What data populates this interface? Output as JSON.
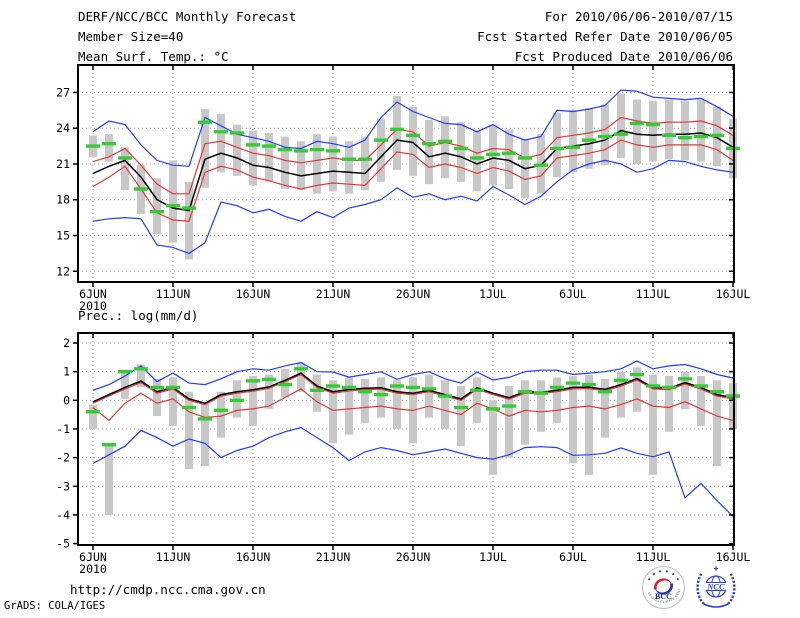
{
  "header": {
    "title": "DERF/NCC/BCC Monthly Forecast",
    "member_size": "Member Size=40",
    "temp_label": "Mean Surf. Temp.: °C",
    "for_range": "For 2010/06/06-2010/07/15",
    "fcst_started": "Fcst Started Refer Date 2010/06/05",
    "fcst_produced": "Fcst Produced Date 2010/06/06"
  },
  "between": {
    "prec_label": "Prec.: log(mm/d)"
  },
  "footer": {
    "url": "http://cmdp.ncc.cma.gov.cn",
    "grads_credit": "GrADS: COLA/IGES",
    "logos": [
      {
        "label": "BCC",
        "ring_text": "BEIJING CLIMATE CENTER"
      },
      {
        "label": "NCC"
      }
    ]
  },
  "colors": {
    "max_min": "#1e3cff",
    "std": "#e63535",
    "mean": "#000000",
    "observation": "#33cc33",
    "spread_bar": "#c8c8c8",
    "grid": "#999999"
  },
  "chart_data": [
    {
      "type": "line",
      "title": "Mean Surf. Temp.: °C",
      "x_tick_labels": [
        "6JUN",
        "11JUN",
        "16JUN",
        "21JUN",
        "26JUN",
        "1JUL",
        "6JUL",
        "11JUL",
        "16JUL"
      ],
      "x_tick_days": [
        0,
        5,
        10,
        15,
        20,
        25,
        30,
        35,
        40
      ],
      "x_year_label": "2010",
      "ylim": [
        11.1,
        29.3
      ],
      "yticks": [
        27,
        24,
        21,
        18,
        15,
        12
      ],
      "grid": true,
      "legend": "none",
      "series": [
        {
          "name": "ensemble-spread",
          "type": "bar",
          "color": "#c8c8c8",
          "lo": [
            21.6,
            21.2,
            18.8,
            16.8,
            15.1,
            14.4,
            13.0,
            19.0,
            20.3,
            20.0,
            19.2,
            19.5,
            18.9,
            18.8,
            18.5,
            18.7,
            18.5,
            18.8,
            19.5,
            20.5,
            20.0,
            19.3,
            19.8,
            19.5,
            18.7,
            19.2,
            18.9,
            18.1,
            18.5,
            19.9,
            20.3,
            20.6,
            20.9,
            21.5,
            21.0,
            21.2,
            21.4,
            21.3,
            21.2,
            20.8,
            19.8
          ],
          "hi": [
            23.4,
            23.5,
            22.4,
            20.9,
            19.8,
            21.3,
            19.5,
            25.6,
            25.2,
            24.3,
            23.8,
            23.6,
            23.3,
            22.9,
            23.5,
            23.3,
            22.9,
            23.3,
            24.8,
            26.7,
            25.8,
            24.7,
            25.0,
            24.5,
            23.8,
            24.3,
            23.9,
            23.1,
            23.5,
            25.3,
            25.5,
            25.7,
            26.0,
            26.9,
            26.4,
            26.3,
            26.4,
            26.3,
            26.4,
            25.8,
            24.8
          ]
        },
        {
          "name": "maximum",
          "type": "line",
          "color": "#1e3cff",
          "values": [
            23.7,
            24.6,
            24.3,
            22.6,
            21.3,
            20.9,
            20.8,
            24.9,
            24.2,
            23.5,
            23.2,
            22.9,
            22.4,
            22.3,
            22.9,
            22.7,
            22.4,
            23.0,
            24.9,
            26.2,
            25.4,
            24.9,
            24.4,
            24.3,
            23.7,
            24.3,
            23.5,
            23.0,
            23.3,
            25.5,
            25.4,
            25.6,
            25.9,
            27.2,
            27.1,
            26.6,
            26.5,
            26.4,
            26.5,
            25.8,
            25.0
          ]
        },
        {
          "name": "mean-plus-std",
          "type": "line",
          "color": "#e63535",
          "values": [
            21.2,
            21.6,
            22.3,
            20.9,
            19.3,
            18.5,
            18.5,
            22.7,
            22.9,
            22.4,
            21.9,
            21.7,
            21.3,
            21.1,
            21.3,
            21.5,
            21.3,
            21.3,
            22.6,
            23.9,
            23.7,
            22.5,
            22.8,
            22.5,
            21.9,
            22.3,
            22.2,
            21.5,
            21.8,
            23.2,
            23.4,
            23.6,
            23.9,
            24.9,
            24.6,
            24.4,
            24.5,
            24.5,
            24.6,
            24.2,
            23.4
          ]
        },
        {
          "name": "ensemble-mean",
          "type": "line",
          "color": "#000000",
          "values": [
            20.2,
            20.8,
            21.3,
            19.9,
            18.0,
            17.3,
            17.1,
            21.4,
            21.9,
            21.5,
            20.9,
            20.7,
            20.3,
            20.0,
            20.2,
            20.4,
            20.3,
            20.2,
            21.6,
            23.0,
            22.8,
            21.6,
            21.9,
            21.6,
            21.0,
            21.5,
            21.3,
            20.6,
            20.9,
            22.3,
            22.5,
            22.7,
            23.0,
            23.8,
            23.5,
            23.4,
            23.5,
            23.5,
            23.6,
            23.2,
            22.4
          ]
        },
        {
          "name": "mean-minus-std",
          "type": "line",
          "color": "#e63535",
          "values": [
            19.1,
            19.9,
            20.8,
            18.9,
            16.9,
            16.3,
            16.2,
            20.3,
            20.8,
            20.5,
            19.9,
            19.6,
            19.2,
            18.9,
            19.2,
            19.4,
            19.3,
            19.2,
            20.6,
            22.0,
            21.8,
            20.7,
            21.0,
            20.7,
            20.2,
            20.7,
            20.4,
            19.7,
            20.0,
            21.5,
            21.7,
            21.9,
            22.2,
            23.0,
            22.6,
            22.4,
            22.6,
            22.6,
            22.6,
            22.2,
            21.3
          ]
        },
        {
          "name": "minimum",
          "type": "line",
          "color": "#1e3cff",
          "values": [
            16.2,
            16.4,
            16.5,
            16.4,
            14.2,
            14.0,
            13.5,
            14.4,
            17.8,
            17.5,
            16.9,
            17.2,
            16.6,
            16.2,
            17.0,
            16.5,
            17.3,
            17.6,
            18.0,
            19.0,
            18.2,
            18.5,
            18.0,
            18.3,
            17.9,
            19.1,
            18.4,
            17.6,
            18.3,
            19.5,
            20.5,
            21.0,
            21.3,
            21.0,
            20.3,
            20.6,
            21.3,
            21.2,
            20.8,
            20.5,
            20.3
          ]
        },
        {
          "name": "observation",
          "type": "dash",
          "color": "#33cc33",
          "values": [
            22.5,
            22.7,
            21.5,
            18.9,
            17.0,
            17.5,
            17.3,
            24.5,
            23.7,
            23.6,
            22.6,
            22.5,
            22.2,
            22.1,
            22.2,
            22.1,
            21.4,
            21.4,
            23.0,
            23.9,
            23.4,
            22.7,
            22.9,
            22.3,
            21.5,
            21.8,
            21.9,
            21.5,
            20.9,
            22.3,
            22.4,
            23.0,
            23.3,
            23.5,
            24.4,
            24.3,
            23.4,
            23.2,
            23.3,
            23.4,
            22.3
          ]
        }
      ]
    },
    {
      "type": "line",
      "title": "Prec.: log(mm/d)",
      "x_tick_labels": [
        "6JUN",
        "11JUN",
        "16JUN",
        "21JUN",
        "26JUN",
        "1JUL",
        "6JUL",
        "11JUL",
        "16JUL"
      ],
      "x_tick_days": [
        0,
        5,
        10,
        15,
        20,
        25,
        30,
        35,
        40
      ],
      "x_year_label": "2010",
      "ylim": [
        -5.05,
        2.35
      ],
      "yticks": [
        2,
        1,
        0,
        -1,
        -2,
        -3,
        -4,
        -5
      ],
      "grid": true,
      "legend": "none",
      "series": [
        {
          "name": "ensemble-spread",
          "type": "bar",
          "color": "#c8c8c8",
          "lo": [
            -1.0,
            -4.0,
            0.05,
            0.45,
            -0.55,
            -0.9,
            -2.4,
            -2.3,
            -1.3,
            -0.6,
            -0.9,
            -0.3,
            0.1,
            0.3,
            -0.4,
            -1.5,
            -1.2,
            -0.8,
            -0.6,
            -1.0,
            -1.5,
            -0.6,
            -1.0,
            -1.6,
            -0.8,
            -2.6,
            -2.0,
            -1.55,
            -1.1,
            -0.8,
            -2.2,
            -2.6,
            -1.3,
            -0.6,
            -0.4,
            -2.6,
            -1.1,
            -0.3,
            -0.9,
            -2.3,
            -1.0
          ],
          "hi": [
            -0.15,
            -1.5,
            1.05,
            1.25,
            0.75,
            0.8,
            0.3,
            -0.1,
            0.3,
            0.7,
            0.85,
            0.9,
            1.1,
            1.3,
            0.9,
            0.7,
            0.8,
            0.75,
            0.8,
            0.7,
            0.8,
            0.9,
            0.7,
            0.5,
            0.8,
            0.0,
            0.5,
            0.7,
            0.7,
            0.8,
            0.85,
            0.9,
            0.75,
            1.0,
            1.15,
            0.9,
            0.85,
            1.0,
            0.85,
            0.7,
            0.6
          ]
        },
        {
          "name": "maximum",
          "type": "line",
          "color": "#1e3cff",
          "values": [
            0.35,
            0.55,
            0.85,
            1.2,
            0.65,
            0.95,
            0.6,
            0.55,
            0.75,
            1.0,
            1.1,
            1.05,
            1.2,
            1.32,
            1.0,
            0.99,
            0.81,
            0.9,
            1.0,
            0.73,
            0.9,
            1.0,
            0.75,
            0.6,
            0.99,
            0.71,
            0.8,
            1.0,
            1.05,
            1.05,
            0.9,
            0.95,
            1.0,
            1.1,
            1.37,
            1.1,
            1.2,
            1.25,
            1.1,
            0.9,
            0.78
          ]
        },
        {
          "name": "mean-plus-std",
          "type": "line",
          "color": "#e63535",
          "values": [
            -0.1,
            0.15,
            0.4,
            0.62,
            0.25,
            0.4,
            0.0,
            -0.15,
            0.15,
            0.25,
            0.32,
            0.42,
            0.65,
            0.9,
            0.45,
            0.25,
            0.33,
            0.37,
            0.39,
            0.25,
            0.2,
            0.3,
            0.15,
            0.0,
            0.39,
            0.2,
            0.04,
            0.25,
            0.23,
            0.3,
            0.4,
            0.41,
            0.33,
            0.5,
            0.71,
            0.4,
            0.37,
            0.57,
            0.4,
            0.15,
            0.05
          ]
        },
        {
          "name": "ensemble-mean",
          "type": "line",
          "color": "#000000",
          "values": [
            -0.05,
            0.2,
            0.45,
            0.67,
            0.3,
            0.45,
            0.05,
            -0.1,
            0.2,
            0.3,
            0.37,
            0.47,
            0.7,
            0.95,
            0.5,
            0.3,
            0.38,
            0.42,
            0.44,
            0.3,
            0.25,
            0.35,
            0.2,
            0.05,
            0.44,
            0.25,
            0.09,
            0.3,
            0.28,
            0.35,
            0.45,
            0.46,
            0.38,
            0.55,
            0.76,
            0.45,
            0.42,
            0.62,
            0.45,
            0.2,
            0.1
          ]
        },
        {
          "name": "mean-minus-std",
          "type": "line",
          "color": "#e63535",
          "values": [
            -0.25,
            -0.7,
            -0.1,
            0.25,
            -0.1,
            0.05,
            -0.4,
            -0.6,
            -0.55,
            -0.35,
            -0.3,
            -0.2,
            0.1,
            0.4,
            -0.05,
            -0.35,
            -0.3,
            -0.25,
            -0.2,
            -0.3,
            -0.35,
            -0.2,
            -0.35,
            -0.5,
            -0.1,
            -0.3,
            -0.55,
            -0.35,
            -0.4,
            -0.35,
            -0.25,
            -0.2,
            -0.3,
            -0.15,
            0.05,
            -0.2,
            -0.25,
            -0.05,
            -0.3,
            -0.55,
            -0.7
          ]
        },
        {
          "name": "minimum",
          "type": "line",
          "color": "#1e3cff",
          "values": [
            -2.2,
            -1.9,
            -1.6,
            -1.05,
            -1.3,
            -1.6,
            -1.35,
            -1.5,
            -2.0,
            -1.75,
            -1.6,
            -1.3,
            -1.1,
            -0.95,
            -1.3,
            -1.65,
            -2.1,
            -1.8,
            -1.65,
            -1.75,
            -1.9,
            -1.8,
            -1.7,
            -1.85,
            -2.0,
            -2.05,
            -1.9,
            -1.65,
            -1.62,
            -1.65,
            -1.92,
            -1.9,
            -1.85,
            -1.66,
            -1.85,
            -1.97,
            -1.8,
            -3.4,
            -2.9,
            -3.5,
            -4.05
          ]
        },
        {
          "name": "observation",
          "type": "dash",
          "color": "#33cc33",
          "values": [
            -0.4,
            -1.55,
            1.0,
            1.1,
            0.45,
            0.45,
            -0.25,
            -0.65,
            -0.35,
            0.0,
            0.68,
            0.73,
            0.55,
            1.1,
            0.35,
            0.5,
            0.45,
            0.3,
            0.2,
            0.5,
            0.45,
            0.4,
            0.15,
            -0.25,
            0.35,
            -0.3,
            -0.2,
            0.3,
            0.25,
            0.45,
            0.6,
            0.55,
            0.3,
            0.7,
            0.9,
            0.5,
            0.45,
            0.75,
            0.5,
            0.3,
            0.15
          ]
        }
      ]
    }
  ]
}
